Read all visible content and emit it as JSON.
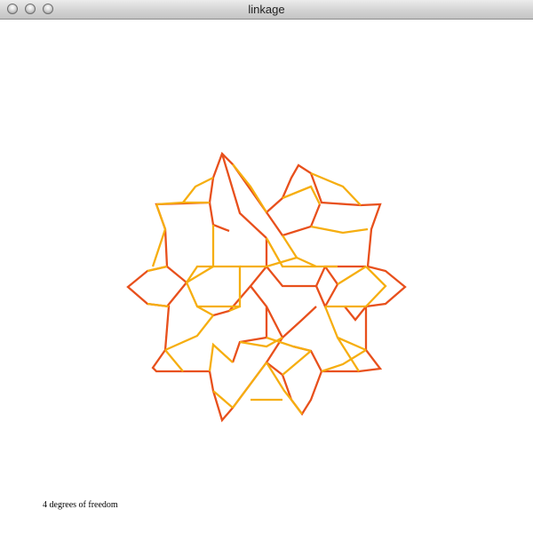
{
  "window": {
    "title": "linkage"
  },
  "status": {
    "text": "4 degrees of freedom"
  },
  "colors": {
    "bar_dark": "#e8501c",
    "bar_light": "#f6ae10",
    "background": "#ffffff"
  }
}
